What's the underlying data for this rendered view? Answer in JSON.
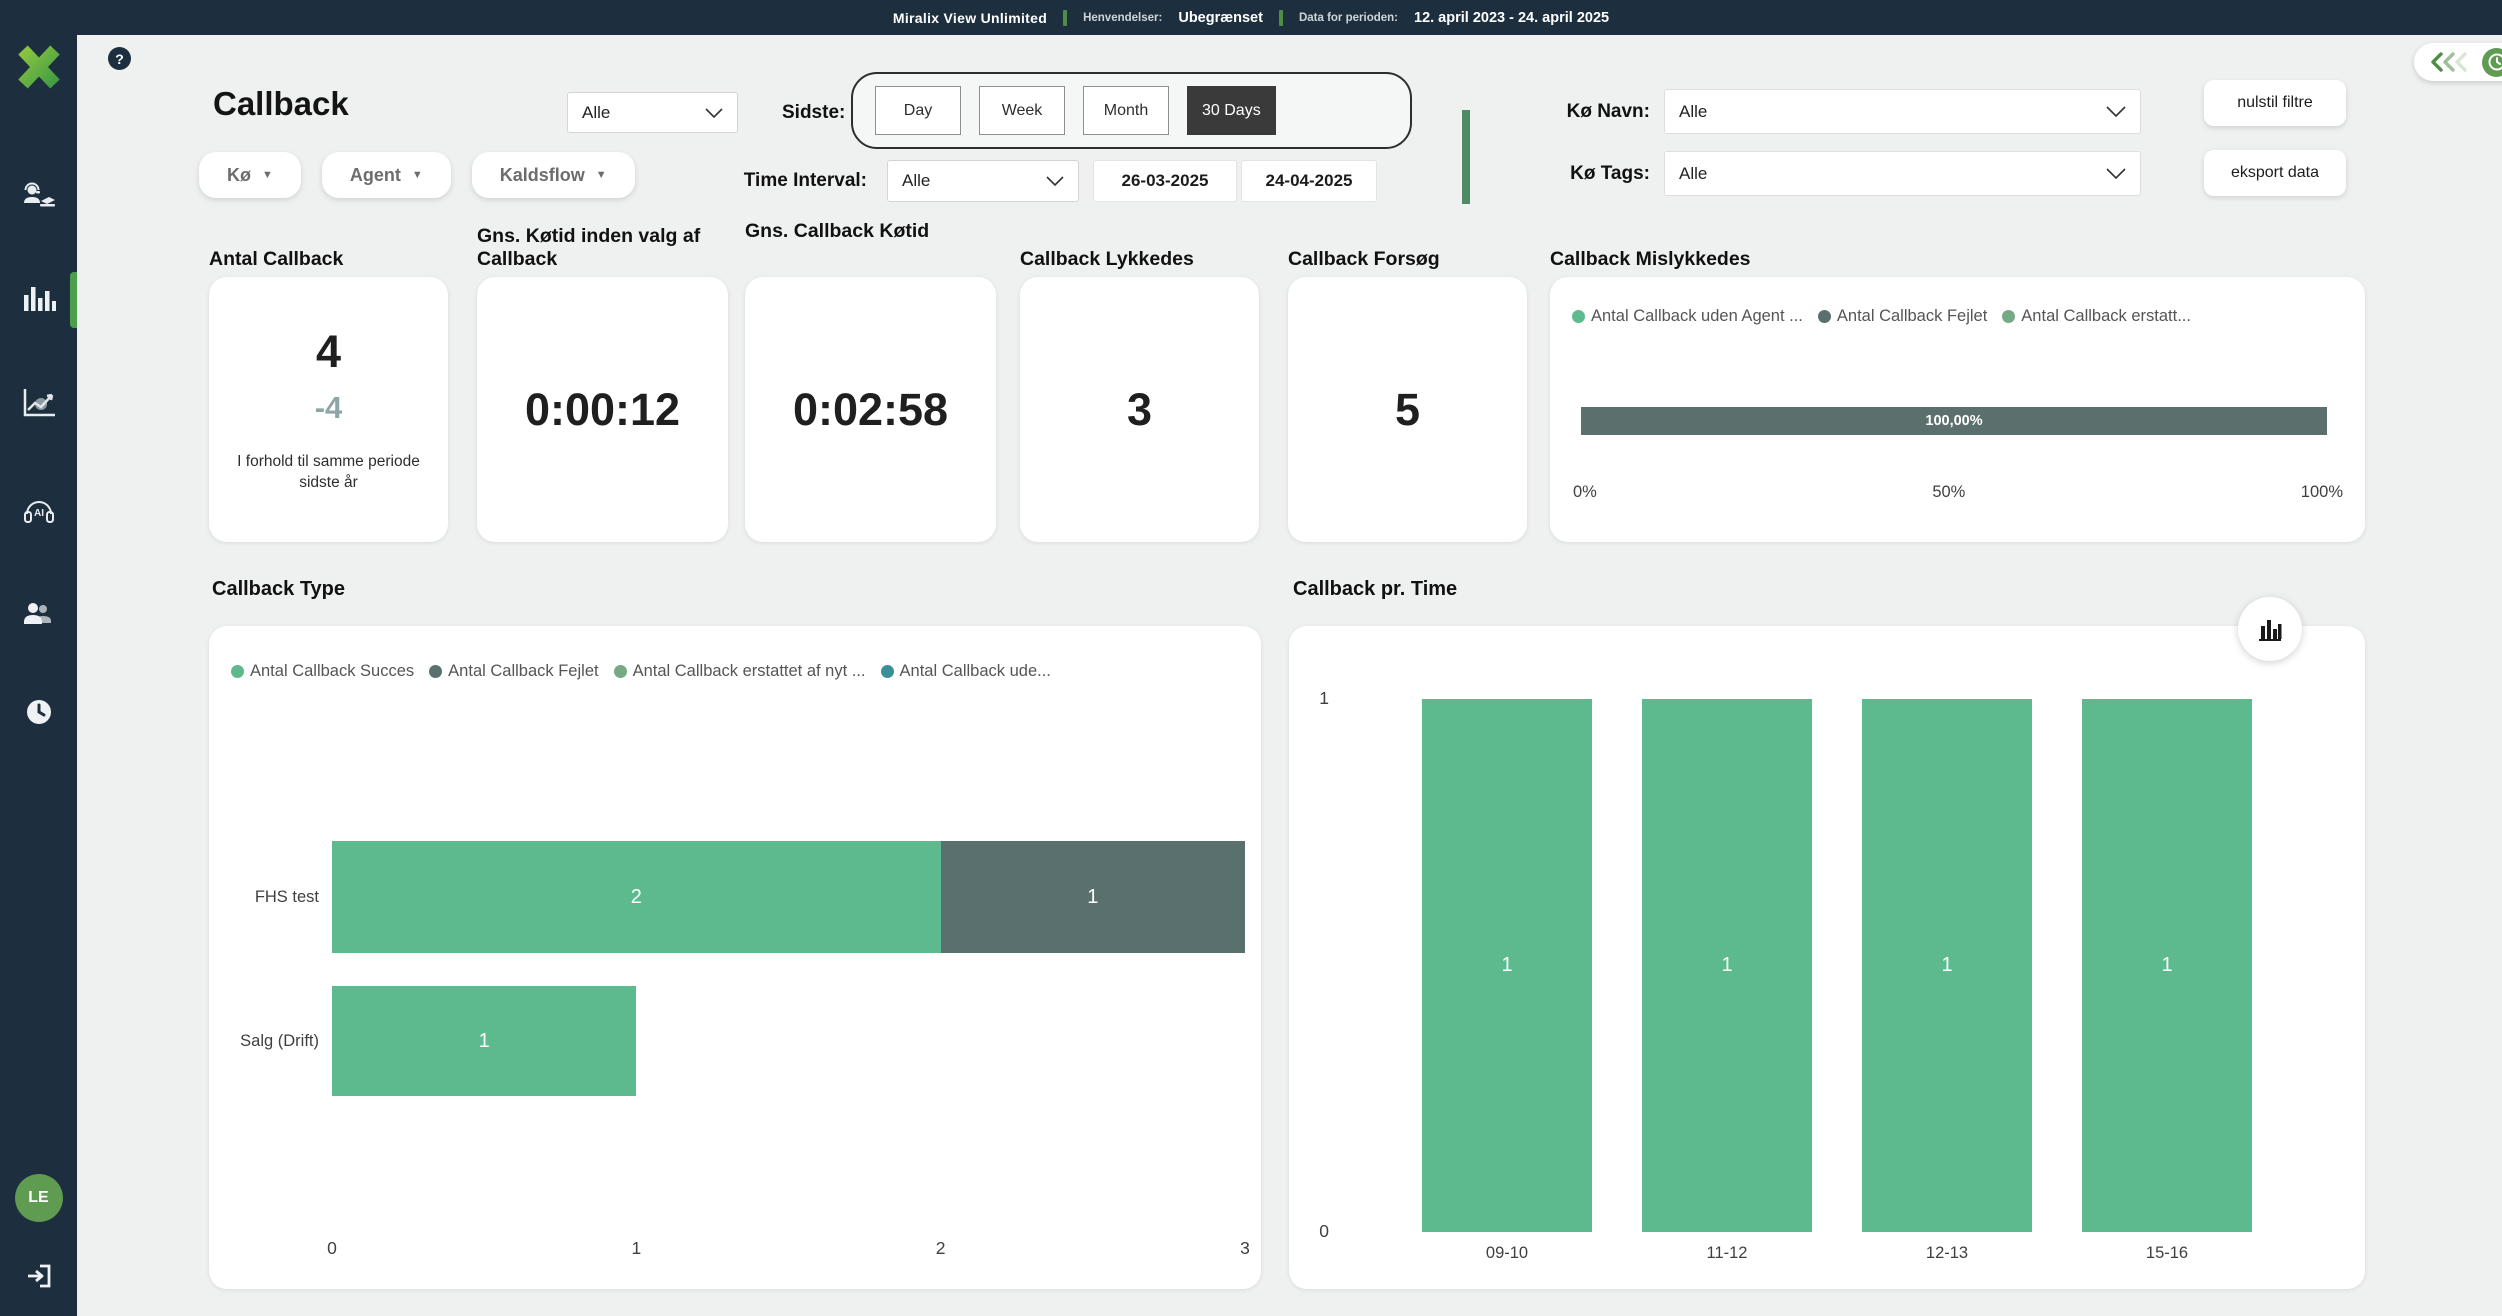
{
  "topbar": {
    "brand": "Miralix View Unlimited",
    "henvendelser_label": "Henvendelser:",
    "henvendelser_value": "Ubegrænset",
    "periode_label": "Data for perioden:",
    "periode_value": "12. april 2023 - 24. april 2025"
  },
  "sidebar": {
    "avatar_initials": "LE"
  },
  "header": {
    "help_label": "?",
    "title": "Callback",
    "scope_select_value": "Alle",
    "filter_pills": [
      "Kø",
      "Agent",
      "Kaldsflow"
    ],
    "pill_caret": "▼",
    "sidste_label": "Sidste:",
    "period_buttons": [
      "Day",
      "Week",
      "Month",
      "30 Days"
    ],
    "period_selected": "30 Days",
    "time_interval_label": "Time Interval:",
    "time_interval_value": "Alle",
    "date_from": "26-03-2025",
    "date_to": "24-04-2025",
    "ko_navn_label": "Kø Navn:",
    "ko_navn_value": "Alle",
    "ko_tags_label": "Kø Tags:",
    "ko_tags_value": "Alle",
    "reset_button": "nulstil filtre",
    "export_button": "eksport data"
  },
  "kpis": [
    {
      "title": "Antal Callback",
      "value": "4",
      "delta": "-4",
      "caption": "I forhold til samme periode sidste år"
    },
    {
      "title": "Gns. Køtid inden valg af Callback",
      "value": "0:00:12"
    },
    {
      "title": "Gns. Callback Køtid",
      "value": "0:02:58"
    },
    {
      "title": "Callback Lykkedes",
      "value": "3"
    },
    {
      "title": "Callback Forsøg",
      "value": "5"
    }
  ],
  "mislykkedes": {
    "title": "Callback Mislykkedes",
    "legend": [
      {
        "label": "Antal Callback uden Agent ...",
        "color": "#5cba8e"
      },
      {
        "label": "Antal Callback Fejlet",
        "color": "#5a706e"
      },
      {
        "label": "Antal Callback erstatt...",
        "color": "#76aa84"
      }
    ],
    "chart_data": {
      "type": "bar",
      "orientation": "horizontal-stacked-percent",
      "series": [
        {
          "name": "Antal Callback Fejlet",
          "value": 100.0,
          "label": "100,00%",
          "color": "#5b6f6d"
        }
      ],
      "x_ticks": [
        "0%",
        "50%",
        "100%"
      ],
      "xlim": [
        0,
        100
      ]
    }
  },
  "callback_type": {
    "title": "Callback Type",
    "legend": [
      {
        "label": "Antal Callback Succes",
        "color": "#5cba8e"
      },
      {
        "label": "Antal Callback Fejlet",
        "color": "#5a706e"
      },
      {
        "label": "Antal Callback erstattet af nyt ...",
        "color": "#76aa84"
      },
      {
        "label": "Antal Callback ude...",
        "color": "#3b8f96"
      }
    ],
    "chart_data": {
      "type": "bar",
      "orientation": "horizontal-stacked",
      "categories": [
        "FHS test",
        "Salg (Drift)"
      ],
      "series": [
        {
          "name": "Antal Callback Succes",
          "color": "#5cba8e",
          "values": [
            2,
            1
          ]
        },
        {
          "name": "Antal Callback Fejlet",
          "color": "#5a706e",
          "values": [
            1,
            0
          ]
        }
      ],
      "x_ticks": [
        0,
        1,
        2,
        3
      ],
      "xlim": [
        0,
        3
      ]
    }
  },
  "callback_pr_time": {
    "title": "Callback pr. Time",
    "chart_data": {
      "type": "bar",
      "categories": [
        "09-10",
        "11-12",
        "12-13",
        "15-16"
      ],
      "values": [
        1,
        1,
        1,
        1
      ],
      "bar_color": "#5cba8e",
      "y_ticks": [
        0,
        1
      ],
      "ylim": [
        0,
        1
      ]
    }
  },
  "colors": {
    "navy": "#1d2f3e",
    "accent_green": "#5cba8e",
    "slate": "#5a706e",
    "teal": "#3b8f96",
    "muted_green": "#76aa84",
    "divider_green": "#4f8a66",
    "avatar_green": "#5f9b51"
  }
}
